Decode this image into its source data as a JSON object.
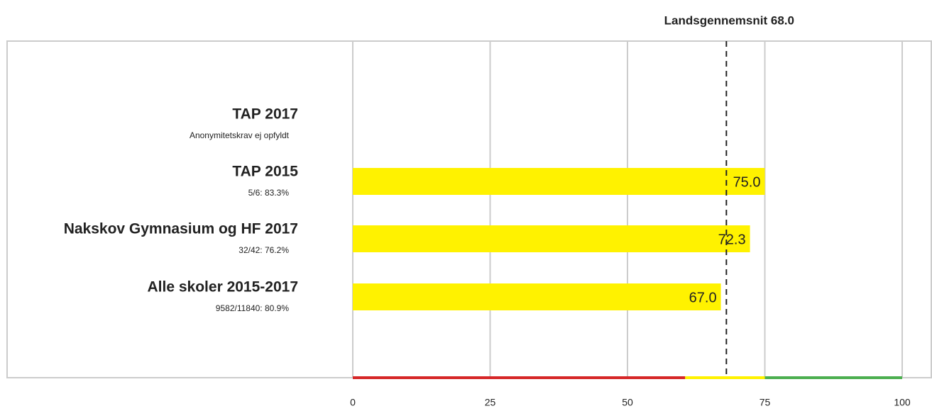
{
  "chart_data": {
    "type": "hbar",
    "categories": [
      "TAP 2017",
      "TAP 2015",
      "Nakskov Gymnasium og HF 2017",
      "Alle skoler 2015-2017"
    ],
    "sublabels": [
      "Anonymitetskrav ej opfyldt",
      "5/6: 83.3%",
      "32/42: 76.2%",
      "9582/11840: 80.9%"
    ],
    "values": [
      null,
      75.0,
      72.3,
      67.0
    ],
    "value_labels": [
      null,
      "75.0",
      "72.3",
      "67.0"
    ],
    "color": "#fff200",
    "xlim": [
      0,
      100
    ],
    "xticks": [
      0,
      25,
      50,
      75,
      100
    ],
    "grid": true,
    "reference": {
      "label": "Landsgennemsnit 68.0",
      "value": 68
    },
    "bands": [
      {
        "from": 0,
        "to": 60.5,
        "color": "#d62728"
      },
      {
        "from": 60.5,
        "to": 75,
        "color": "#fff200"
      },
      {
        "from": 75,
        "to": 100,
        "color": "#4caf50"
      }
    ]
  }
}
